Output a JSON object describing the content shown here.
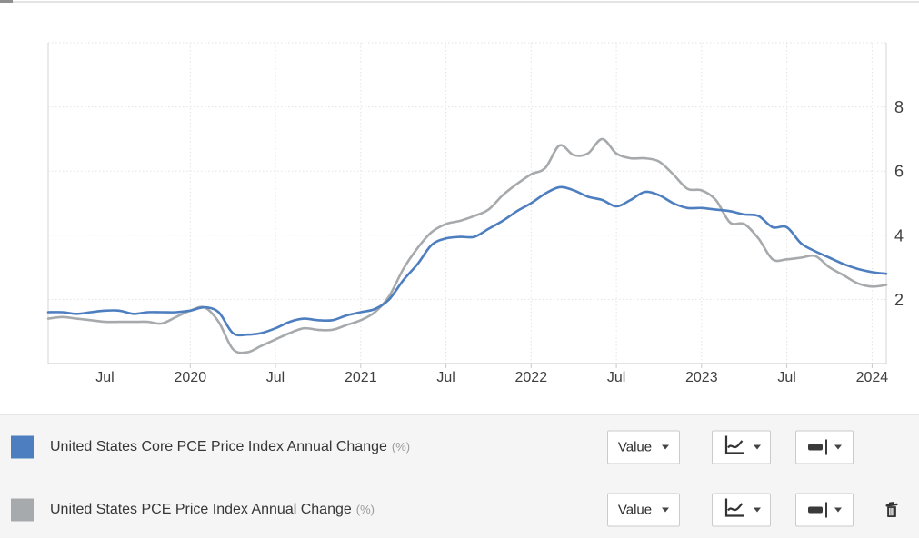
{
  "chart_data": {
    "type": "line",
    "title": "",
    "xlabel": "",
    "ylabel": "",
    "ylim": [
      0,
      10
    ],
    "yticks": [
      2,
      4,
      6,
      8
    ],
    "grid": true,
    "legend_position": "bottom",
    "categories": [
      "Mar 2019",
      "Apr 2019",
      "May 2019",
      "Jun 2019",
      "Jul 2019",
      "Aug 2019",
      "Sep 2019",
      "Oct 2019",
      "Nov 2019",
      "Dec 2019",
      "Jan 2020",
      "Feb 2020",
      "Mar 2020",
      "Apr 2020",
      "May 2020",
      "Jun 2020",
      "Jul 2020",
      "Aug 2020",
      "Sep 2020",
      "Oct 2020",
      "Nov 2020",
      "Dec 2020",
      "Jan 2021",
      "Feb 2021",
      "Mar 2021",
      "Apr 2021",
      "May 2021",
      "Jun 2021",
      "Jul 2021",
      "Aug 2021",
      "Sep 2021",
      "Oct 2021",
      "Nov 2021",
      "Dec 2021",
      "Jan 2022",
      "Feb 2022",
      "Mar 2022",
      "Apr 2022",
      "May 2022",
      "Jun 2022",
      "Jul 2022",
      "Aug 2022",
      "Sep 2022",
      "Oct 2022",
      "Nov 2022",
      "Dec 2022",
      "Jan 2023",
      "Feb 2023",
      "Mar 2023",
      "Apr 2023",
      "May 2023",
      "Jun 2023",
      "Jul 2023",
      "Aug 2023",
      "Sep 2023",
      "Oct 2023",
      "Nov 2023",
      "Dec 2023",
      "Jan 2024",
      "Feb 2024"
    ],
    "xticks": [
      {
        "label": "Jul",
        "index": 4
      },
      {
        "label": "2020",
        "index": 10
      },
      {
        "label": "Jul",
        "index": 16
      },
      {
        "label": "2021",
        "index": 22
      },
      {
        "label": "Jul",
        "index": 28
      },
      {
        "label": "2022",
        "index": 34
      },
      {
        "label": "Jul",
        "index": 40
      },
      {
        "label": "2023",
        "index": 46
      },
      {
        "label": "Jul",
        "index": 52
      },
      {
        "label": "2024",
        "index": 58
      }
    ],
    "series": [
      {
        "name": "United States Core PCE Price Index Annual Change",
        "unit": "%",
        "color": "#4d7ebf",
        "values": [
          1.6,
          1.6,
          1.55,
          1.6,
          1.65,
          1.65,
          1.55,
          1.6,
          1.6,
          1.6,
          1.65,
          1.75,
          1.6,
          0.95,
          0.9,
          0.95,
          1.1,
          1.3,
          1.4,
          1.35,
          1.35,
          1.5,
          1.6,
          1.7,
          2.0,
          2.6,
          3.1,
          3.7,
          3.9,
          3.95,
          3.95,
          4.2,
          4.45,
          4.75,
          5.0,
          5.3,
          5.5,
          5.4,
          5.2,
          5.1,
          4.9,
          5.1,
          5.35,
          5.25,
          5.0,
          4.85,
          4.85,
          4.8,
          4.75,
          4.65,
          4.6,
          4.25,
          4.25,
          3.75,
          3.5,
          3.3,
          3.1,
          2.95,
          2.85,
          2.8
        ]
      },
      {
        "name": "United States PCE Price Index Annual Change",
        "unit": "%",
        "color": "#a7aaac",
        "values": [
          1.4,
          1.45,
          1.4,
          1.35,
          1.3,
          1.3,
          1.3,
          1.3,
          1.25,
          1.45,
          1.65,
          1.75,
          1.3,
          0.45,
          0.35,
          0.55,
          0.75,
          0.95,
          1.1,
          1.05,
          1.05,
          1.2,
          1.35,
          1.6,
          2.1,
          2.95,
          3.6,
          4.1,
          4.35,
          4.45,
          4.6,
          4.8,
          5.25,
          5.6,
          5.9,
          6.1,
          6.8,
          6.5,
          6.55,
          7.0,
          6.55,
          6.4,
          6.4,
          6.3,
          5.9,
          5.45,
          5.4,
          5.1,
          4.4,
          4.35,
          3.9,
          3.25,
          3.25,
          3.3,
          3.35,
          3.0,
          2.75,
          2.5,
          2.4,
          2.45
        ]
      }
    ]
  },
  "legend": {
    "rows": [
      {
        "label": "United States Core PCE Price Index Annual Change",
        "unit_suffix": "(%)",
        "swatch_color": "#4d7ebf",
        "value_label": "Value",
        "icons": [
          "caret-down",
          "line-chart",
          "line-width"
        ],
        "has_delete": false
      },
      {
        "label": "United States PCE Price Index Annual Change",
        "unit_suffix": "(%)",
        "swatch_color": "#a7aaac",
        "value_label": "Value",
        "icons": [
          "caret-down",
          "line-chart",
          "line-width",
          "trash"
        ],
        "has_delete": true
      }
    ]
  }
}
